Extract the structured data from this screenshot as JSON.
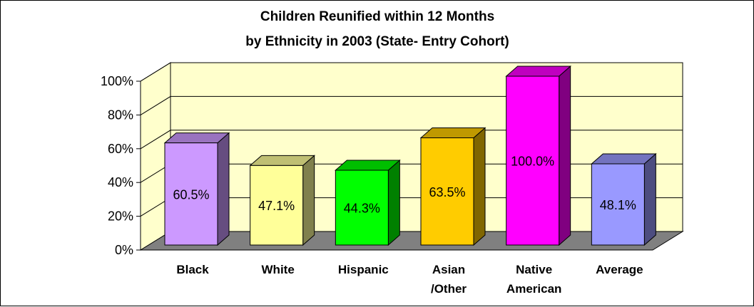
{
  "chart_data": {
    "type": "bar",
    "title_lines": [
      "Children Reunified within 12 Months",
      "by Ethnicity in 2003 (State- Entry Cohort)"
    ],
    "categories": [
      {
        "lines": [
          "Black"
        ],
        "value": 60.5,
        "label": "60.5%",
        "color": "#cc99ff"
      },
      {
        "lines": [
          "White"
        ],
        "value": 47.1,
        "label": "47.1%",
        "color": "#ffff99"
      },
      {
        "lines": [
          "Hispanic"
        ],
        "value": 44.3,
        "label": "44.3%",
        "color": "#00ff00"
      },
      {
        "lines": [
          "Asian",
          "/Other"
        ],
        "value": 63.5,
        "label": "63.5%",
        "color": "#ffcc00"
      },
      {
        "lines": [
          "Native",
          "American"
        ],
        "value": 100.0,
        "label": "100.0%",
        "color": "#ff00ff"
      },
      {
        "lines": [
          "Average"
        ],
        "value": 48.1,
        "label": "48.1%",
        "color": "#9999ff"
      }
    ],
    "y_ticks": [
      "0%",
      "20%",
      "40%",
      "60%",
      "80%",
      "100%"
    ],
    "ylim": [
      0,
      100
    ],
    "grid": true,
    "wall_color": "#ffffcc",
    "floor_color": "#808080"
  }
}
